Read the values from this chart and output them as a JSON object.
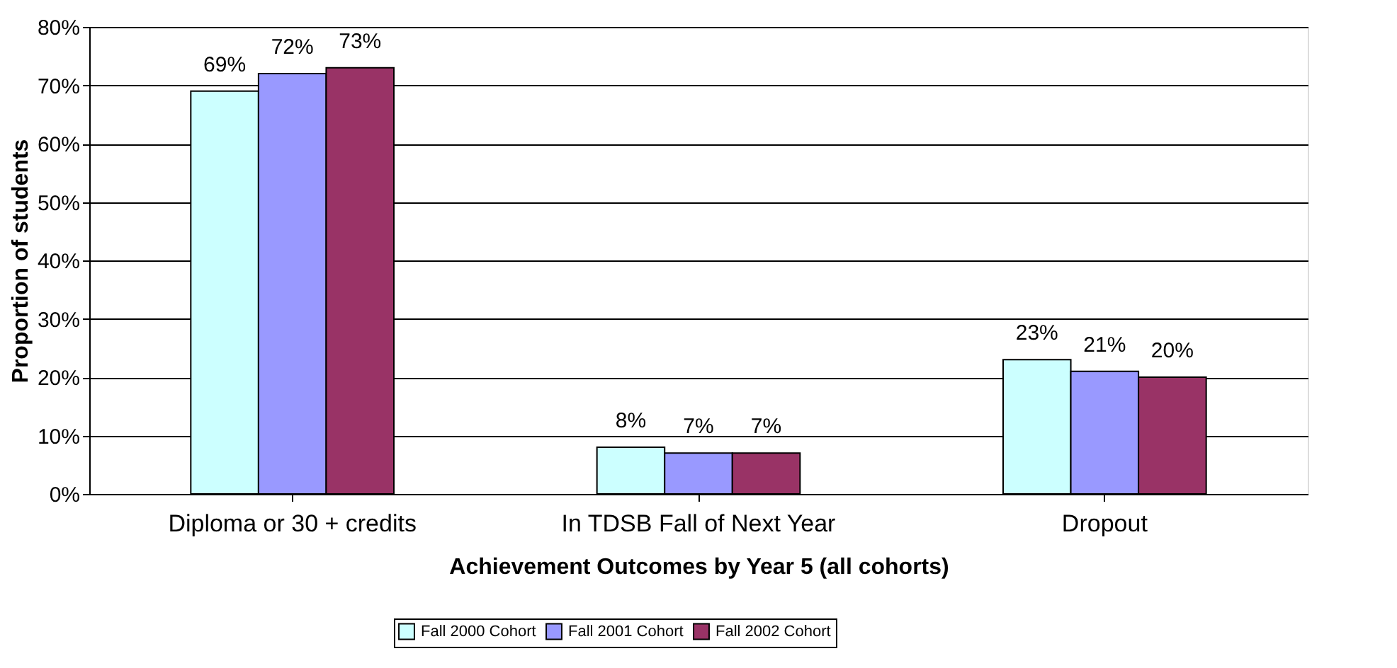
{
  "chart_data": {
    "type": "bar",
    "xlabel": "Achievement Outcomes by Year 5 (all cohorts)",
    "ylabel": "Proportion of students",
    "categories": [
      "Diploma or 30 + credits",
      "In TDSB Fall of Next Year",
      "Dropout"
    ],
    "series": [
      {
        "name": "Fall 2000 Cohort",
        "color": "#ccffff",
        "values": [
          69,
          8,
          23
        ],
        "value_labels": [
          "69%",
          "8%",
          "23%"
        ]
      },
      {
        "name": "Fall 2001 Cohort",
        "color": "#9999ff",
        "values": [
          72,
          7,
          21
        ],
        "value_labels": [
          "72%",
          "7%",
          "21%"
        ]
      },
      {
        "name": "Fall 2002 Cohort",
        "color": "#993366",
        "values": [
          73,
          7,
          20
        ],
        "value_labels": [
          "73%",
          "7%",
          "20%"
        ]
      }
    ],
    "ylim": [
      0,
      80
    ],
    "yticks": [
      {
        "value": 0,
        "label": "0%"
      },
      {
        "value": 10,
        "label": "10%"
      },
      {
        "value": 20,
        "label": "20%"
      },
      {
        "value": 30,
        "label": "30%"
      },
      {
        "value": 40,
        "label": "40%"
      },
      {
        "value": 50,
        "label": "50%"
      },
      {
        "value": 60,
        "label": "60%"
      },
      {
        "value": 70,
        "label": "70%"
      },
      {
        "value": 80,
        "label": "80%"
      }
    ],
    "data_labels": true,
    "grid": "y",
    "legend": "bottom"
  }
}
